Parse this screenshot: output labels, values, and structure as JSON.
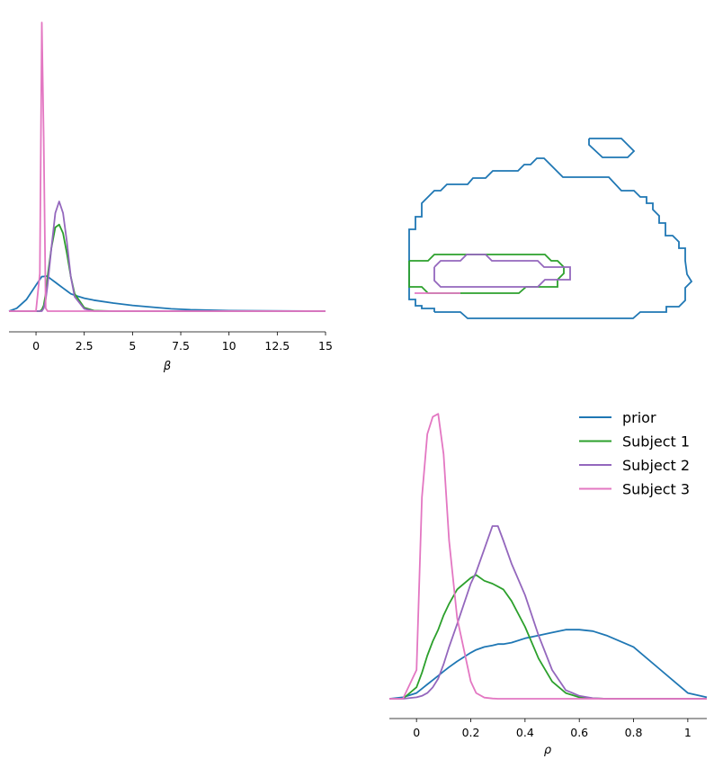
{
  "chart_data": [
    {
      "panel": "beta-marginal",
      "type": "line",
      "xlabel": "β",
      "xlim": [
        -1.4,
        15
      ],
      "ylim": [
        0,
        1.0
      ],
      "xticks": [
        "0",
        "2.5",
        "5",
        "7.5",
        "10",
        "12.5",
        "15"
      ],
      "x": [
        -1.4,
        -1.0,
        -0.5,
        0.0,
        0.2,
        0.3,
        0.4,
        0.5,
        0.6,
        0.8,
        1.0,
        1.2,
        1.4,
        1.6,
        1.8,
        2.0,
        2.5,
        3,
        4,
        5,
        6,
        7,
        8,
        10,
        12,
        15
      ],
      "series": [
        {
          "name": "prior",
          "color": "#1f77b4",
          "values": [
            0.0,
            0.01,
            0.04,
            0.09,
            0.11,
            0.12,
            0.12,
            0.122,
            0.12,
            0.11,
            0.1,
            0.09,
            0.08,
            0.07,
            0.06,
            0.055,
            0.045,
            0.038,
            0.028,
            0.02,
            0.014,
            0.008,
            0.005,
            0.002,
            0.001,
            0.0
          ]
        },
        {
          "name": "Subject 1",
          "color": "#2ca02c",
          "values": [
            0,
            0,
            0,
            0,
            0,
            0.005,
            0.02,
            0.06,
            0.12,
            0.22,
            0.29,
            0.3,
            0.27,
            0.2,
            0.12,
            0.06,
            0.012,
            0.002,
            0,
            0,
            0,
            0,
            0,
            0,
            0,
            0
          ]
        },
        {
          "name": "Subject 2",
          "color": "#9467bd",
          "values": [
            0,
            0,
            0,
            0,
            0,
            0,
            0.01,
            0.04,
            0.09,
            0.22,
            0.34,
            0.38,
            0.34,
            0.24,
            0.12,
            0.05,
            0.008,
            0,
            0,
            0,
            0,
            0,
            0,
            0,
            0,
            0
          ]
        },
        {
          "name": "Subject 3",
          "color": "#e377c2",
          "values": [
            0,
            0,
            0,
            0.0,
            0.13,
            1.0,
            0.6,
            0.01,
            0,
            0,
            0,
            0,
            0,
            0,
            0,
            0,
            0,
            0,
            0,
            0,
            0,
            0,
            0,
            0,
            0,
            0
          ]
        }
      ]
    },
    {
      "panel": "joint-contours",
      "type": "contour",
      "xlim": [
        -1.4,
        15
      ],
      "ylim": [
        -0.1,
        1.1
      ],
      "series": [
        {
          "name": "prior",
          "color": "#1f77b4"
        },
        {
          "name": "Subject 1",
          "color": "#2ca02c"
        },
        {
          "name": "Subject 2",
          "color": "#9467bd"
        },
        {
          "name": "Subject 3",
          "color": "#e377c2"
        }
      ]
    },
    {
      "panel": "rho-marginal",
      "type": "line",
      "xlabel": "ρ",
      "xlim": [
        -0.1,
        1.07
      ],
      "ylim": [
        0,
        1.0
      ],
      "xticks": [
        "0",
        "0.2",
        "0.4",
        "0.6",
        "0.8",
        "1"
      ],
      "x": [
        -0.1,
        -0.05,
        0.0,
        0.02,
        0.04,
        0.06,
        0.08,
        0.1,
        0.12,
        0.15,
        0.2,
        0.22,
        0.25,
        0.28,
        0.3,
        0.32,
        0.35,
        0.4,
        0.45,
        0.5,
        0.55,
        0.6,
        0.65,
        0.7,
        0.8,
        0.9,
        1.0,
        1.07
      ],
      "series": [
        {
          "name": "prior",
          "color": "#1f77b4",
          "values": [
            0,
            0.005,
            0.02,
            0.035,
            0.05,
            0.065,
            0.08,
            0.095,
            0.11,
            0.13,
            0.16,
            0.17,
            0.18,
            0.185,
            0.19,
            0.19,
            0.195,
            0.21,
            0.22,
            0.23,
            0.24,
            0.24,
            0.235,
            0.22,
            0.18,
            0.1,
            0.02,
            0.005
          ]
        },
        {
          "name": "Subject 1",
          "color": "#2ca02c",
          "values": [
            0,
            0.0,
            0.04,
            0.09,
            0.15,
            0.2,
            0.24,
            0.29,
            0.33,
            0.38,
            0.42,
            0.43,
            0.41,
            0.4,
            0.39,
            0.38,
            0.34,
            0.25,
            0.14,
            0.06,
            0.02,
            0.005,
            0.002,
            0,
            0,
            0,
            0,
            0
          ]
        },
        {
          "name": "Subject 2",
          "color": "#9467bd",
          "values": [
            0,
            0,
            0.005,
            0.01,
            0.02,
            0.04,
            0.07,
            0.12,
            0.18,
            0.26,
            0.4,
            0.44,
            0.52,
            0.6,
            0.6,
            0.55,
            0.47,
            0.36,
            0.22,
            0.1,
            0.03,
            0.01,
            0.002,
            0,
            0,
            0,
            0,
            0
          ]
        },
        {
          "name": "Subject 3",
          "color": "#e377c2",
          "values": [
            0,
            0,
            0.1,
            0.7,
            0.92,
            0.98,
            0.99,
            0.85,
            0.55,
            0.28,
            0.06,
            0.02,
            0.004,
            0.001,
            0,
            0,
            0,
            0,
            0,
            0,
            0,
            0,
            0,
            0,
            0,
            0,
            0,
            0
          ]
        }
      ]
    }
  ],
  "legend": {
    "placement": "top-right",
    "entries": [
      {
        "label": "prior",
        "color": "#1f77b4"
      },
      {
        "label": "Subject 1",
        "color": "#2ca02c"
      },
      {
        "label": "Subject 2",
        "color": "#9467bd"
      },
      {
        "label": "Subject 3",
        "color": "#e377c2"
      }
    ]
  }
}
